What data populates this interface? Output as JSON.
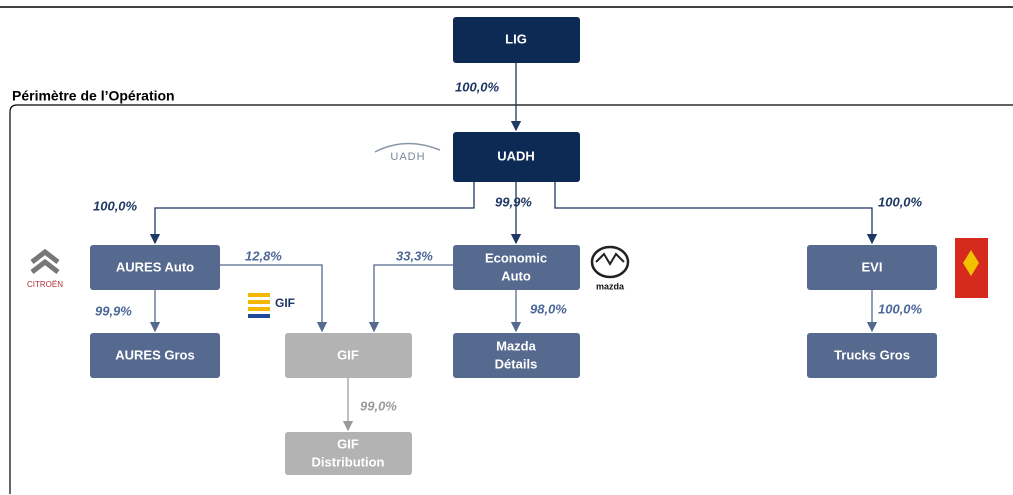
{
  "perimeter_title": "Périmètre de l’Opération",
  "nodes": [
    {
      "lines": [
        "LIG"
      ]
    },
    {
      "lines": [
        "UADH"
      ]
    },
    {
      "lines": [
        "AURES Auto"
      ]
    },
    {
      "lines": [
        "Economic",
        "Auto"
      ]
    },
    {
      "lines": [
        "EVI"
      ]
    },
    {
      "lines": [
        "AURES Gros"
      ]
    },
    {
      "lines": [
        "GIF"
      ]
    },
    {
      "lines": [
        "Mazda",
        "Détails"
      ]
    },
    {
      "lines": [
        "Trucks Gros"
      ]
    },
    {
      "lines": [
        "GIF",
        "Distribution"
      ]
    }
  ],
  "edges": [
    {
      "label": "100,0%"
    },
    {
      "label": "100,0%"
    },
    {
      "label": "99,9%"
    },
    {
      "label": "100,0%"
    },
    {
      "label": "99,9%"
    },
    {
      "label": "12,8%"
    },
    {
      "label": "33,3%"
    },
    {
      "label": "98,0%"
    },
    {
      "label": "100,0%"
    },
    {
      "label": "99,0%"
    }
  ],
  "logos": {
    "uadh": "UADH",
    "citroen": "CITROËN",
    "gif": "GIF",
    "mazda": "mazda"
  }
}
